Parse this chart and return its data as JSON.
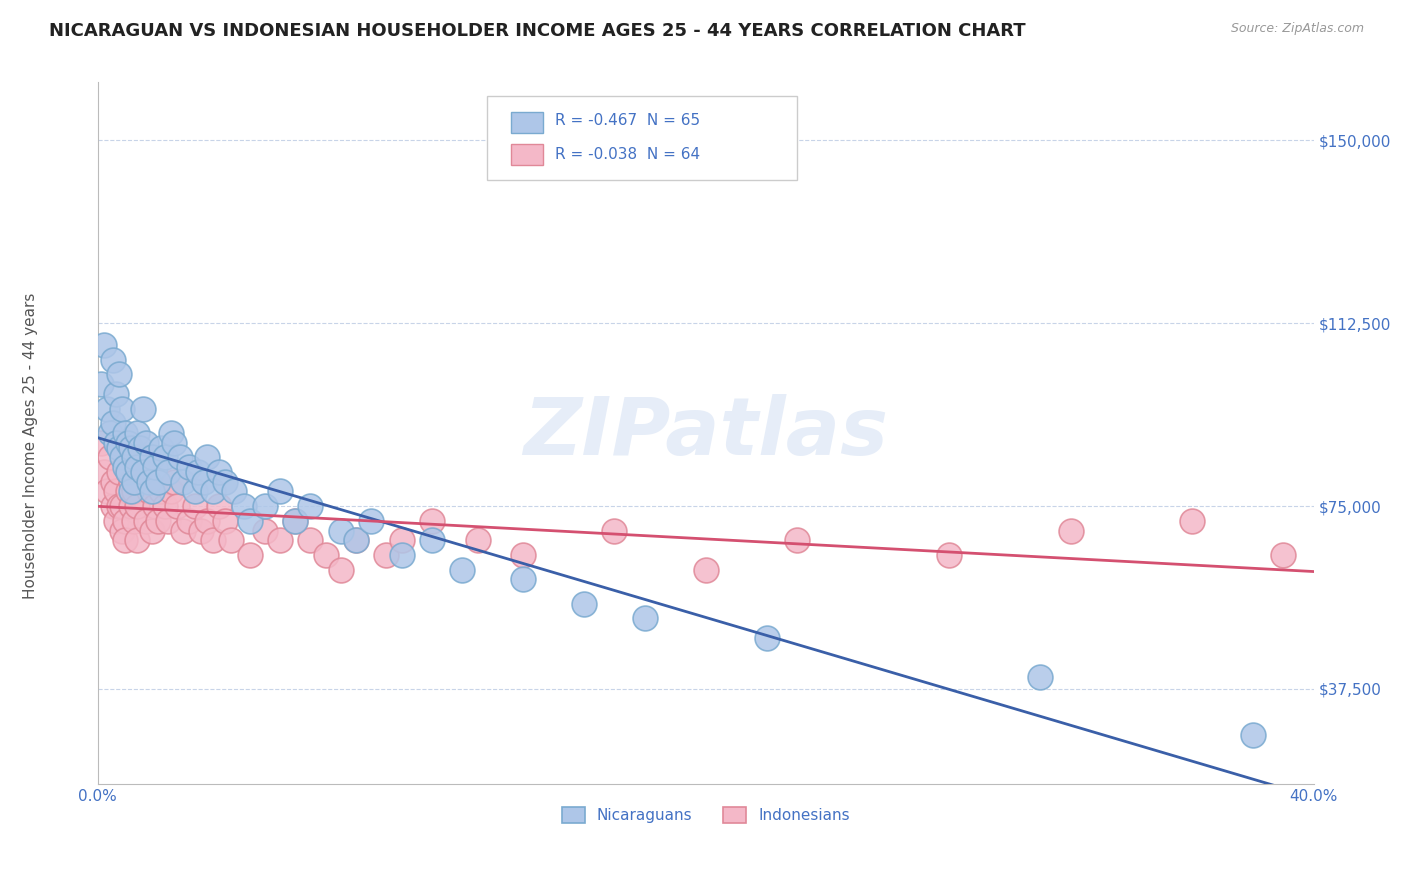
{
  "title": "NICARAGUAN VS INDONESIAN HOUSEHOLDER INCOME AGES 25 - 44 YEARS CORRELATION CHART",
  "source": "Source: ZipAtlas.com",
  "ylabel": "Householder Income Ages 25 - 44 years",
  "xlim": [
    0.0,
    0.4
  ],
  "ylim": [
    18000,
    162000
  ],
  "yticks": [
    37500,
    75000,
    112500,
    150000
  ],
  "ytick_labels": [
    "$37,500",
    "$75,000",
    "$112,500",
    "$150,000"
  ],
  "xticks": [
    0.0,
    0.05,
    0.1,
    0.15,
    0.2,
    0.25,
    0.3,
    0.35,
    0.4
  ],
  "xtick_labels": [
    "0.0%",
    "",
    "",
    "",
    "",
    "",
    "",
    "",
    "40.0%"
  ],
  "blue_dot_color": "#aec6e8",
  "pink_dot_color": "#f4b8c8",
  "blue_edge_color": "#7aaad0",
  "pink_edge_color": "#e08898",
  "blue_line_color": "#3a5fa8",
  "pink_line_color": "#d45070",
  "watermark": "ZIPatlas",
  "background_color": "#ffffff",
  "grid_color": "#c8d4e8",
  "title_color": "#222222",
  "axis_label_color": "#555555",
  "tick_label_color": "#4472c4",
  "legend_box_color": "#cccccc",
  "blue_r": "R = -0.467",
  "blue_n": "N = 65",
  "pink_r": "R = -0.038",
  "pink_n": "N = 64",
  "blue_scatter_x": [
    0.001,
    0.002,
    0.003,
    0.004,
    0.005,
    0.005,
    0.006,
    0.006,
    0.007,
    0.007,
    0.008,
    0.008,
    0.009,
    0.009,
    0.01,
    0.01,
    0.011,
    0.011,
    0.012,
    0.012,
    0.013,
    0.013,
    0.014,
    0.015,
    0.015,
    0.016,
    0.017,
    0.018,
    0.018,
    0.019,
    0.02,
    0.021,
    0.022,
    0.023,
    0.024,
    0.025,
    0.027,
    0.028,
    0.03,
    0.032,
    0.033,
    0.035,
    0.036,
    0.038,
    0.04,
    0.042,
    0.045,
    0.048,
    0.05,
    0.055,
    0.06,
    0.065,
    0.07,
    0.08,
    0.085,
    0.09,
    0.1,
    0.11,
    0.12,
    0.14,
    0.16,
    0.18,
    0.22,
    0.31,
    0.38
  ],
  "blue_scatter_y": [
    100000,
    108000,
    95000,
    90000,
    105000,
    92000,
    88000,
    98000,
    87000,
    102000,
    85000,
    95000,
    90000,
    83000,
    88000,
    82000,
    87000,
    78000,
    85000,
    80000,
    90000,
    83000,
    87000,
    95000,
    82000,
    88000,
    80000,
    85000,
    78000,
    83000,
    80000,
    87000,
    85000,
    82000,
    90000,
    88000,
    85000,
    80000,
    83000,
    78000,
    82000,
    80000,
    85000,
    78000,
    82000,
    80000,
    78000,
    75000,
    72000,
    75000,
    78000,
    72000,
    75000,
    70000,
    68000,
    72000,
    65000,
    68000,
    62000,
    60000,
    55000,
    52000,
    48000,
    40000,
    28000
  ],
  "pink_scatter_x": [
    0.001,
    0.002,
    0.003,
    0.004,
    0.005,
    0.005,
    0.006,
    0.006,
    0.007,
    0.007,
    0.008,
    0.008,
    0.009,
    0.009,
    0.01,
    0.01,
    0.011,
    0.011,
    0.012,
    0.012,
    0.013,
    0.013,
    0.014,
    0.015,
    0.016,
    0.017,
    0.018,
    0.019,
    0.02,
    0.021,
    0.022,
    0.023,
    0.024,
    0.025,
    0.026,
    0.028,
    0.03,
    0.032,
    0.034,
    0.036,
    0.038,
    0.04,
    0.042,
    0.044,
    0.05,
    0.055,
    0.06,
    0.065,
    0.07,
    0.075,
    0.08,
    0.085,
    0.095,
    0.1,
    0.11,
    0.125,
    0.14,
    0.17,
    0.2,
    0.23,
    0.28,
    0.32,
    0.36,
    0.39
  ],
  "pink_scatter_y": [
    88000,
    82000,
    78000,
    85000,
    75000,
    80000,
    72000,
    78000,
    75000,
    82000,
    70000,
    75000,
    72000,
    68000,
    78000,
    82000,
    75000,
    80000,
    72000,
    78000,
    68000,
    75000,
    82000,
    85000,
    72000,
    78000,
    70000,
    75000,
    72000,
    78000,
    75000,
    72000,
    78000,
    80000,
    75000,
    70000,
    72000,
    75000,
    70000,
    72000,
    68000,
    75000,
    72000,
    68000,
    65000,
    70000,
    68000,
    72000,
    68000,
    65000,
    62000,
    68000,
    65000,
    68000,
    72000,
    68000,
    65000,
    70000,
    62000,
    68000,
    65000,
    70000,
    72000,
    65000
  ]
}
